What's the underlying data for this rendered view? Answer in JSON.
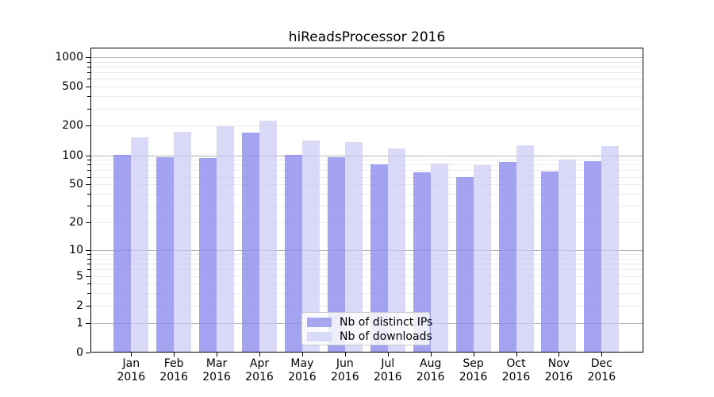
{
  "title": "hiReadsProcessor 2016",
  "legend": {
    "items": [
      {
        "label": "Nb of distinct IPs",
        "color": "#a7a7f0"
      },
      {
        "label": "Nb of downloads",
        "color": "#d9d9f8"
      }
    ]
  },
  "chart_data": {
    "type": "bar",
    "title": "hiReadsProcessor 2016",
    "categories": [
      "Jan",
      "Feb",
      "Mar",
      "Apr",
      "May",
      "Jun",
      "Jul",
      "Aug",
      "Sep",
      "Oct",
      "Nov",
      "Dec"
    ],
    "category_year": "2016",
    "series": [
      {
        "name": "Nb of distinct IPs",
        "color_fill": "rgba(140,140,238,0.8)",
        "color_flat": "#a7a7f0",
        "values": [
          100,
          93,
          92,
          166,
          100,
          94,
          79,
          65,
          58,
          84,
          67,
          85
        ]
      },
      {
        "name": "Nb of downloads",
        "color_fill": "rgba(200,200,245,0.68)",
        "color_flat": "#d9d9f8",
        "values": [
          150,
          172,
          195,
          222,
          140,
          133,
          115,
          80,
          78,
          125,
          89,
          122
        ]
      }
    ],
    "xlabel": "",
    "ylabel": "",
    "y_scale": "log10(value+1)",
    "y_axis_ticks": [
      0,
      1,
      2,
      5,
      10,
      20,
      50,
      100,
      200,
      500,
      1000
    ],
    "y_tick_labels": [
      "0",
      "1",
      "2",
      "5",
      "10",
      "20",
      "50",
      "100",
      "200",
      "500",
      "1000"
    ],
    "y_major_gridlines": [
      1,
      10,
      100,
      1000
    ],
    "y_minor_gridlines": [
      2,
      3,
      4,
      5,
      6,
      7,
      8,
      9,
      20,
      30,
      40,
      50,
      60,
      70,
      80,
      90,
      200,
      300,
      400,
      500,
      600,
      700,
      800,
      900
    ],
    "ylim": [
      0,
      1200
    ],
    "grid": "horizontal major+minor",
    "legend_position": "inside lower center"
  }
}
